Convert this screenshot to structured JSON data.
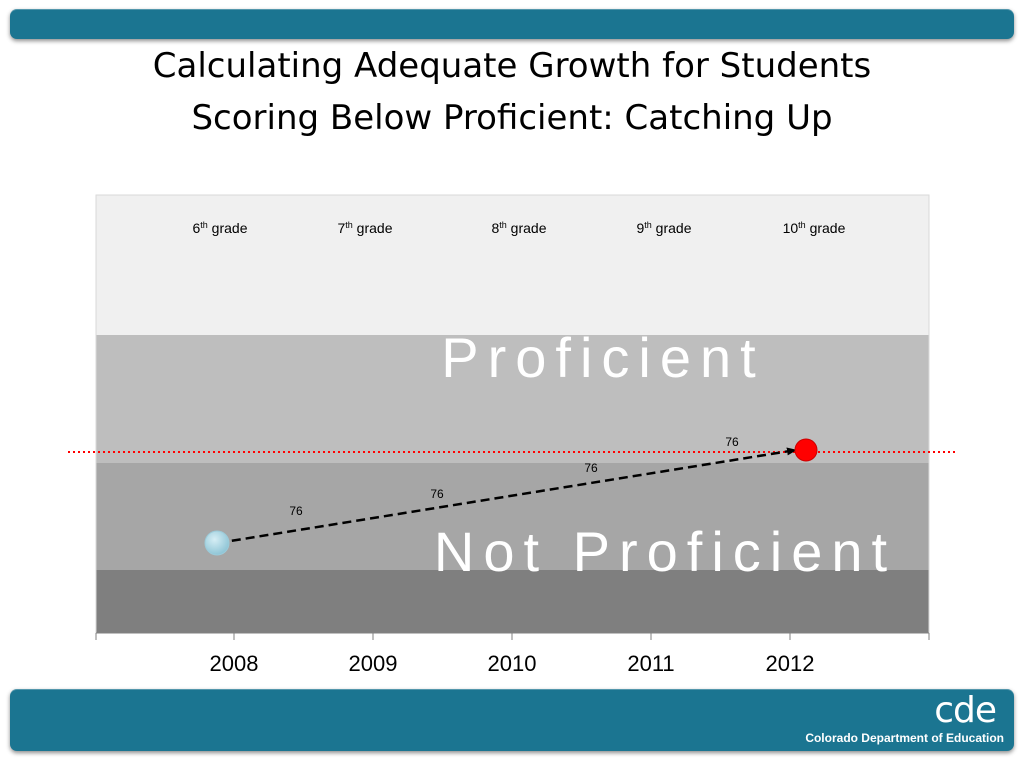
{
  "slide": {
    "title_line1": "Calculating Adequate Growth for Students",
    "title_line2": "Scoring Below Proficient: Catching Up",
    "logo_text": "cde",
    "org_name": "Colorado Department of Education",
    "colors": {
      "bar": "#1b7591",
      "background": "#ffffff",
      "band_top": "#f0f0f0",
      "band_proficient": "#bebebe",
      "band_not_proficient": "#a6a6a6",
      "band_bottom": "#7f7f7f",
      "start_point": "#a8d8e6",
      "target_point": "#ff0000",
      "target_line": "#ff0000"
    }
  },
  "chart_data": {
    "type": "line",
    "x": [
      "2008",
      "2009",
      "2010",
      "2011",
      "2012"
    ],
    "grade_labels": [
      {
        "grade": "6",
        "sup": "th",
        "suffix": " grade"
      },
      {
        "grade": "7",
        "sup": "th",
        "suffix": " grade"
      },
      {
        "grade": "8",
        "sup": "th",
        "suffix": " grade"
      },
      {
        "grade": "9",
        "sup": "th",
        "suffix": " grade"
      },
      {
        "grade": "10",
        "sup": "th",
        "suffix": " grade"
      }
    ],
    "bands": [
      {
        "label": "",
        "color": "#f0f0f0"
      },
      {
        "label": "Proficient",
        "color": "#bebebe"
      },
      {
        "label": "Not Proficient",
        "color": "#a6a6a6"
      },
      {
        "label": "",
        "color": "#7f7f7f"
      }
    ],
    "growth_labels": [
      "76",
      "76",
      "76",
      "76"
    ],
    "start_point": {
      "year": "2008",
      "level": "Not Proficient"
    },
    "target_point": {
      "year": "2012",
      "level": "Proficient cut line"
    },
    "arrow_style": "dashed",
    "target_line_style": "dotted"
  }
}
